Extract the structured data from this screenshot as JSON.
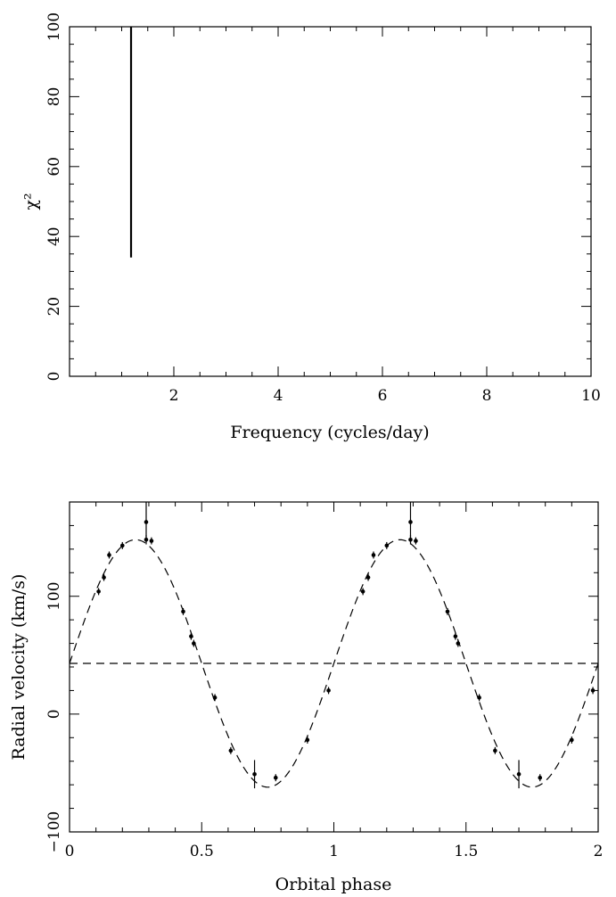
{
  "chart_data": [
    {
      "type": "line",
      "xlabel": "Frequency (cycles/day)",
      "ylabel": "χ²",
      "xlim": [
        0,
        10
      ],
      "ylim": [
        0,
        100
      ],
      "xticks": [
        2,
        4,
        6,
        8,
        10
      ],
      "yticks": [
        0,
        20,
        40,
        60,
        80,
        100
      ],
      "xtick_labels": [
        "2",
        "4",
        "6",
        "8",
        "10"
      ],
      "ytick_labels": [
        "0",
        "20",
        "40",
        "60",
        "80",
        "100"
      ],
      "series": [
        {
          "x": [
            1.18,
            1.18
          ],
          "y": [
            34,
            100
          ],
          "style": "solid"
        }
      ],
      "grid": false
    },
    {
      "type": "scatter",
      "xlabel": "Orbital phase",
      "ylabel": "Radial velocity (km/s)",
      "xlim": [
        0,
        2
      ],
      "ylim": [
        -100,
        180
      ],
      "xticks": [
        0,
        0.5,
        1,
        1.5,
        2
      ],
      "yticks": [
        -100,
        0,
        100
      ],
      "xtick_labels": [
        "0",
        "0.5",
        "1",
        "1.5",
        "2"
      ],
      "ytick_labels": [
        "−100",
        "0",
        "100"
      ],
      "points": [
        {
          "x": 0.11,
          "y": 104,
          "err": 3
        },
        {
          "x": 0.13,
          "y": 116,
          "err": 3
        },
        {
          "x": 0.15,
          "y": 135,
          "err": 3
        },
        {
          "x": 0.2,
          "y": 143,
          "err": 3
        },
        {
          "x": 0.29,
          "y": 148,
          "err": 4
        },
        {
          "x": 0.29,
          "y": 163,
          "err": 17
        },
        {
          "x": 0.31,
          "y": 147,
          "err": 3
        },
        {
          "x": 0.43,
          "y": 87,
          "err": 3
        },
        {
          "x": 0.46,
          "y": 66,
          "err": 3
        },
        {
          "x": 0.47,
          "y": 60,
          "err": 3
        },
        {
          "x": 0.55,
          "y": 14,
          "err": 3
        },
        {
          "x": 0.61,
          "y": -31,
          "err": 3
        },
        {
          "x": 0.7,
          "y": -51,
          "err": 12
        },
        {
          "x": 0.78,
          "y": -54,
          "err": 3
        },
        {
          "x": 0.9,
          "y": -22,
          "err": 3
        },
        {
          "x": 0.98,
          "y": 20,
          "err": 3
        },
        {
          "x": 1.11,
          "y": 104,
          "err": 3
        },
        {
          "x": 1.13,
          "y": 116,
          "err": 3
        },
        {
          "x": 1.15,
          "y": 135,
          "err": 3
        },
        {
          "x": 1.2,
          "y": 143,
          "err": 3
        },
        {
          "x": 1.29,
          "y": 148,
          "err": 4
        },
        {
          "x": 1.29,
          "y": 163,
          "err": 17
        },
        {
          "x": 1.31,
          "y": 147,
          "err": 3
        },
        {
          "x": 1.43,
          "y": 87,
          "err": 3
        },
        {
          "x": 1.46,
          "y": 66,
          "err": 3
        },
        {
          "x": 1.47,
          "y": 60,
          "err": 3
        },
        {
          "x": 1.55,
          "y": 14,
          "err": 3
        },
        {
          "x": 1.61,
          "y": -31,
          "err": 3
        },
        {
          "x": 1.7,
          "y": -51,
          "err": 12
        },
        {
          "x": 1.78,
          "y": -54,
          "err": 3
        },
        {
          "x": 1.9,
          "y": -22,
          "err": 3
        },
        {
          "x": 1.98,
          "y": 20,
          "err": 3
        }
      ],
      "fit": {
        "type": "sinusoid",
        "gamma": 43,
        "amplitude": 105,
        "phase_of_max": 0.25,
        "style": "dashed"
      },
      "reference_line": {
        "y": 43,
        "style": "dashed"
      },
      "grid": false
    }
  ]
}
